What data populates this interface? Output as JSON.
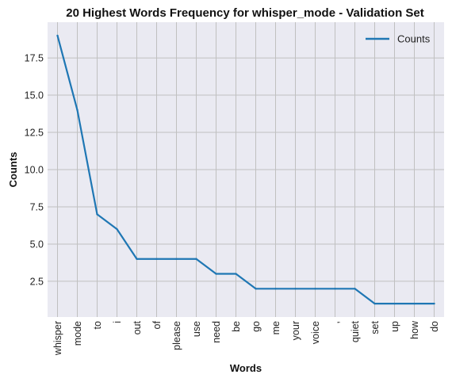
{
  "chart_data": {
    "type": "line",
    "title": "20 Highest Words Frequency for whisper_mode - Validation Set",
    "xlabel": "Words",
    "ylabel": "Counts",
    "categories": [
      "whisper",
      "mode",
      "to",
      "i",
      "out",
      "of",
      "please",
      "use",
      "need",
      "be",
      "go",
      "me",
      "your",
      "voice",
      ",",
      "quiet",
      "set",
      "up",
      "how",
      "do"
    ],
    "series": [
      {
        "name": "Counts",
        "color": "#1f77b4",
        "values": [
          19,
          14,
          7,
          6,
          4,
          4,
          4,
          4,
          3,
          3,
          2,
          2,
          2,
          2,
          2,
          2,
          1,
          1,
          1,
          1
        ]
      }
    ],
    "ylim": [
      0.1,
      19.9
    ],
    "yticks": [
      2.5,
      5.0,
      7.5,
      10.0,
      12.5,
      15.0,
      17.5
    ],
    "ytick_labels": [
      "2.5",
      "5.0",
      "7.5",
      "10.0",
      "12.5",
      "15.0",
      "17.5"
    ],
    "grid": true,
    "legend_position": "top-right",
    "plot_background": "#eaeaf2",
    "grid_color": "#c0c0c0"
  }
}
